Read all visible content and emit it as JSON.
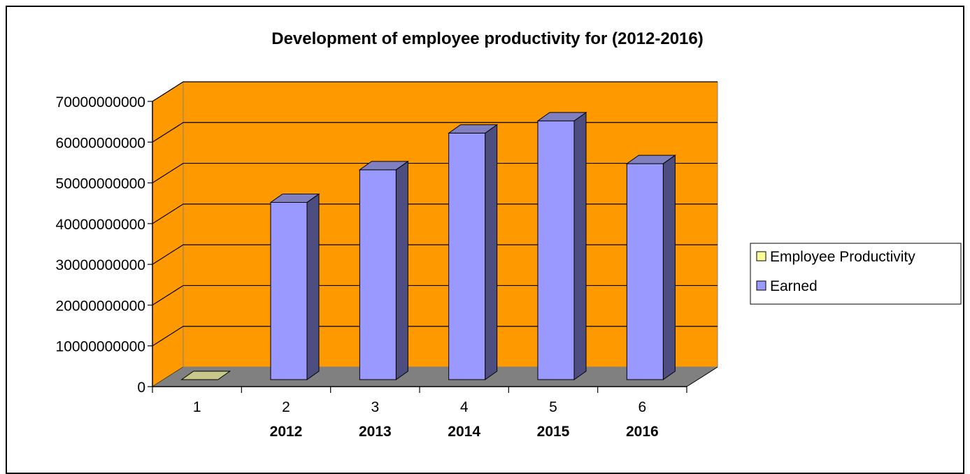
{
  "chart_data": {
    "type": "bar",
    "title": "Development of employee productivity for (2012-2016)",
    "xlabel": "",
    "ylabel": "",
    "categories": [
      "1",
      "2",
      "3",
      "4",
      "5",
      "6"
    ],
    "sub_categories": [
      "",
      "2012",
      "2013",
      "2014",
      "2015",
      "2016"
    ],
    "ylim": [
      0,
      70000000000
    ],
    "yticks": [
      0,
      10000000000,
      20000000000,
      30000000000,
      40000000000,
      50000000000,
      60000000000,
      70000000000
    ],
    "ytick_labels": [
      "0",
      "10000000000",
      "20000000000",
      "30000000000",
      "40000000000",
      "50000000000",
      "60000000000",
      "70000000000"
    ],
    "grid": true,
    "legend_position": "right",
    "series": [
      {
        "name": "Employee Productivity",
        "values": [
          0,
          0,
          0,
          0,
          0,
          0
        ],
        "color": "#ffff99",
        "top_color": "#c8c88a"
      },
      {
        "name": "Earned",
        "values": [
          0,
          43500000000,
          51500000000,
          60500000000,
          63500000000,
          53000000000
        ],
        "color": "#9999ff",
        "side_color": "#4d4d80",
        "top_color": "#8080c0"
      }
    ],
    "colors": {
      "back_wall": "#ff9900",
      "side_wall": "#ff9900",
      "floor": "#808080",
      "grid_line": "#000000"
    },
    "projection": "3d"
  }
}
